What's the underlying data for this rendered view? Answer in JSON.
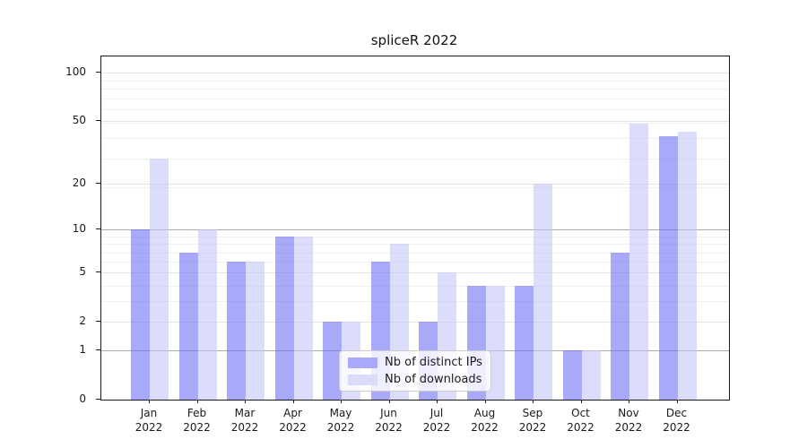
{
  "chart_data": {
    "type": "bar",
    "title": "spliceR 2022",
    "x_months": [
      "Jan",
      "Feb",
      "Mar",
      "Apr",
      "May",
      "Jun",
      "Jul",
      "Aug",
      "Sep",
      "Oct",
      "Nov",
      "Dec"
    ],
    "x_year": "2022",
    "categories": [
      "Jan 2022",
      "Feb 2022",
      "Mar 2022",
      "Apr 2022",
      "May 2022",
      "Jun 2022",
      "Jul 2022",
      "Aug 2022",
      "Sep 2022",
      "Oct 2022",
      "Nov 2022",
      "Dec 2022"
    ],
    "series": [
      {
        "name": "Nb of distinct IPs",
        "values": [
          10,
          7,
          6,
          9,
          2,
          6,
          2,
          4,
          4,
          1,
          7,
          40
        ],
        "bar_color": "rgba(112,112,247,0.6)",
        "legend_color": "#a9a9fa"
      },
      {
        "name": "Nb of downloads",
        "values": [
          29,
          10,
          6,
          9,
          2,
          8,
          5,
          4,
          20,
          1,
          48,
          43
        ],
        "bar_color": "rgba(196,196,248,0.6)",
        "legend_color": "#dbdbfa"
      }
    ],
    "yscale": "log10(value+1)",
    "yticks": [
      0,
      1,
      2,
      5,
      10,
      20,
      50,
      100
    ],
    "yticks_minor": [
      3,
      4,
      6,
      7,
      8,
      9,
      19,
      29,
      39,
      49,
      59,
      69,
      79,
      89
    ],
    "ylim": [
      0,
      126
    ],
    "grid": "on",
    "legend_position": "lower center",
    "accent_colors": {
      "ips_bar": "#a9a9fa",
      "downloads_bar": "#dbdbfa",
      "grid_major": "#ababab",
      "grid_minor": "#f0f0f0"
    }
  }
}
